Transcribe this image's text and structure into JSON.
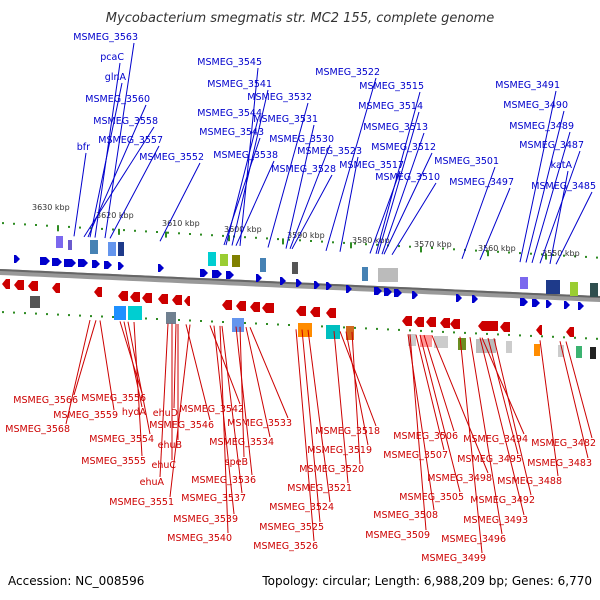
{
  "title": "Mycobacterium smegmatis str. MC2 155, complete genome",
  "accession": "Accession: NC_008596",
  "stats": "Topology: circular; Length: 6,988,209 bp; Genes: 6,770",
  "colors": {
    "forward": "#0000cc",
    "reverse": "#cc0000",
    "tick": "#2e8b22",
    "backbone": "#808080"
  },
  "kbp_ticks": [
    {
      "label": "3630 kbp"
    },
    {
      "label": "3620 kbp"
    },
    {
      "label": "3610 kbp"
    },
    {
      "label": "3600 kbp"
    },
    {
      "label": "3590 kbp"
    },
    {
      "label": "3580 kbp"
    },
    {
      "label": "3570 kbp"
    },
    {
      "label": "3560 kbp"
    },
    {
      "label": "3550 kbp"
    }
  ],
  "top_genes": [
    "MSMEG_3563",
    "pcaC",
    "glnA",
    "MSMEG_3560",
    "MSMEG_3558",
    "bfr",
    "MSMEG_3557",
    "MSMEG_3552",
    "MSMEG_3545",
    "MSMEG_3541",
    "MSMEG_3544",
    "MSMEG_3543",
    "MSMEG_3538",
    "MSMEG_3532",
    "MSMEG_3531",
    "MSMEG_3530",
    "MSMEG_3528",
    "MSMEG_3522",
    "MSMEG_3523",
    "MSMEG_3515",
    "MSMEG_3514",
    "MSMEG_3513",
    "MSMEG_3512",
    "MSMEG_3517",
    "MSMEG_3510",
    "MSMEG_3501",
    "MSMEG_3497",
    "MSMEG_3491",
    "MSMEG_3490",
    "MSMEG_3489",
    "MSMEG_3487",
    "katA",
    "MSMEG_3485"
  ],
  "bottom_genes": [
    "MSMEG_3566",
    "MSMEG_3568",
    "MSMEG_3559",
    "MSMEG_3556",
    "hydA",
    "MSMEG_3554",
    "MSMEG_3555",
    "ehuD",
    "MSMEG_3546",
    "ehuB",
    "ehuC",
    "ehuA",
    "MSMEG_3551",
    "MSMEG_3542",
    "MSMEG_3533",
    "MSMEG_3534",
    "speB",
    "MSMEG_3536",
    "MSMEG_3537",
    "MSMEG_3539",
    "MSMEG_3540",
    "MSMEG_3524",
    "MSMEG_3525",
    "MSMEG_3526",
    "MSMEG_3518",
    "MSMEG_3519",
    "MSMEG_3520",
    "MSMEG_3521",
    "MSMEG_3506",
    "MSMEG_3507",
    "MSMEG_3505",
    "MSMEG_3508",
    "MSMEG_3509",
    "MSMEG_3498",
    "MSMEG_3499",
    "MSMEG_3494",
    "MSMEG_3495",
    "MSMEG_3496",
    "MSMEG_3492",
    "MSMEG_3493",
    "MSMEG_3488",
    "MSMEG_3482",
    "MSMEG_3483"
  ]
}
